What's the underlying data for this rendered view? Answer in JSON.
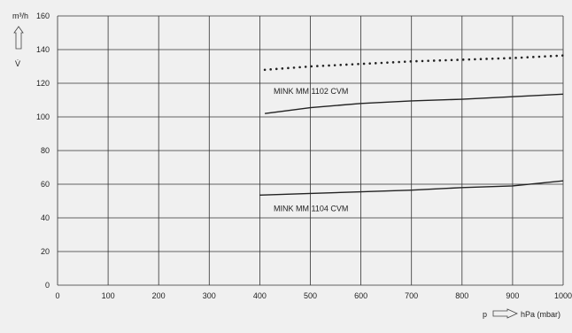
{
  "chart_data": {
    "type": "line",
    "y_unit": "m³/h",
    "y_symbol": "V̇",
    "x_symbol": "p",
    "x_unit": "hPa (mbar)",
    "xlim": [
      0,
      1000
    ],
    "ylim": [
      0,
      160
    ],
    "x_ticks": [
      0,
      100,
      200,
      300,
      400,
      500,
      600,
      700,
      800,
      900,
      1000
    ],
    "y_ticks": [
      0,
      20,
      40,
      60,
      80,
      100,
      120,
      140,
      160
    ],
    "grid": true,
    "series": [
      {
        "name": "",
        "style": "dotted",
        "x": [
          410,
          500,
          600,
          700,
          800,
          900,
          1000
        ],
        "y": [
          128,
          130,
          131.5,
          133,
          134,
          135,
          136.5
        ]
      },
      {
        "name": "MINK MM 1102 CVM",
        "style": "solid",
        "x": [
          410,
          500,
          600,
          700,
          800,
          900,
          1000
        ],
        "y": [
          102,
          105.5,
          108,
          109.5,
          110.5,
          112,
          113.5
        ]
      },
      {
        "name": "MINK MM 1104 CVM",
        "style": "solid",
        "x": [
          400,
          500,
          600,
          700,
          800,
          900,
          1000
        ],
        "y": [
          53.5,
          54.5,
          55.5,
          56.5,
          58,
          59,
          62
        ]
      }
    ]
  },
  "colors": {
    "line": "#222222",
    "grid": "#333333",
    "background": "#f0f0f0"
  }
}
